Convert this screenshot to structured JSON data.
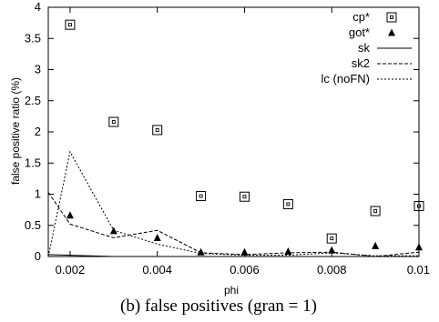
{
  "chart_data": {
    "type": "scatter",
    "xlabel": "phi",
    "ylabel": "false positive ratio (%)",
    "xlim": [
      0.0015,
      0.01
    ],
    "ylim": [
      0,
      4
    ],
    "xticks": [
      "0.002",
      "0.004",
      "0.006",
      "0.008",
      "0.01"
    ],
    "xtick_values": [
      0.002,
      0.004,
      0.006,
      0.008,
      0.01
    ],
    "yticks": [
      "0",
      "0.5",
      "1",
      "1.5",
      "2",
      "2.5",
      "3",
      "3.5",
      "4"
    ],
    "ytick_values": [
      0,
      0.5,
      1,
      1.5,
      2,
      2.5,
      3,
      3.5,
      4
    ],
    "legend_position": "top-right",
    "series": [
      {
        "name": "cp*",
        "style": "open-square",
        "x": [
          0.002,
          0.003,
          0.004,
          0.005,
          0.006,
          0.007,
          0.008,
          0.009,
          0.01
        ],
        "y": [
          3.72,
          2.16,
          2.03,
          0.97,
          0.96,
          0.84,
          0.29,
          0.73,
          0.81
        ]
      },
      {
        "name": "got*",
        "style": "filled-triangle",
        "x": [
          0.002,
          0.003,
          0.004,
          0.005,
          0.006,
          0.007,
          0.008,
          0.009,
          0.01
        ],
        "y": [
          0.66,
          0.41,
          0.3,
          0.07,
          0.07,
          0.08,
          0.1,
          0.17,
          0.15
        ]
      },
      {
        "name": "sk",
        "style": "solid",
        "x": [
          0.0015,
          0.002,
          0.003,
          0.004,
          0.005,
          0.006,
          0.007,
          0.008,
          0.009,
          0.01
        ],
        "y": [
          0.03,
          0.02,
          0.0,
          0.0,
          0.0,
          0.0,
          0.0,
          0.0,
          0.0,
          0.0
        ]
      },
      {
        "name": "sk2",
        "style": "dashed",
        "x": [
          0.0015,
          0.002,
          0.003,
          0.004,
          0.005,
          0.006,
          0.007,
          0.008,
          0.009,
          0.01
        ],
        "y": [
          1.03,
          0.52,
          0.3,
          0.42,
          0.06,
          0.03,
          0.06,
          0.07,
          0.0,
          0.07
        ]
      },
      {
        "name": "lc (noFN)",
        "style": "dotted",
        "x": [
          0.0015,
          0.002,
          0.003,
          0.004,
          0.005,
          0.006,
          0.007,
          0.008,
          0.009,
          0.01
        ],
        "y": [
          0.0,
          1.68,
          0.42,
          0.2,
          0.05,
          0.02,
          0.02,
          0.06,
          0.01,
          0.01
        ]
      }
    ]
  },
  "caption": "(b) false positives (gran = 1)"
}
